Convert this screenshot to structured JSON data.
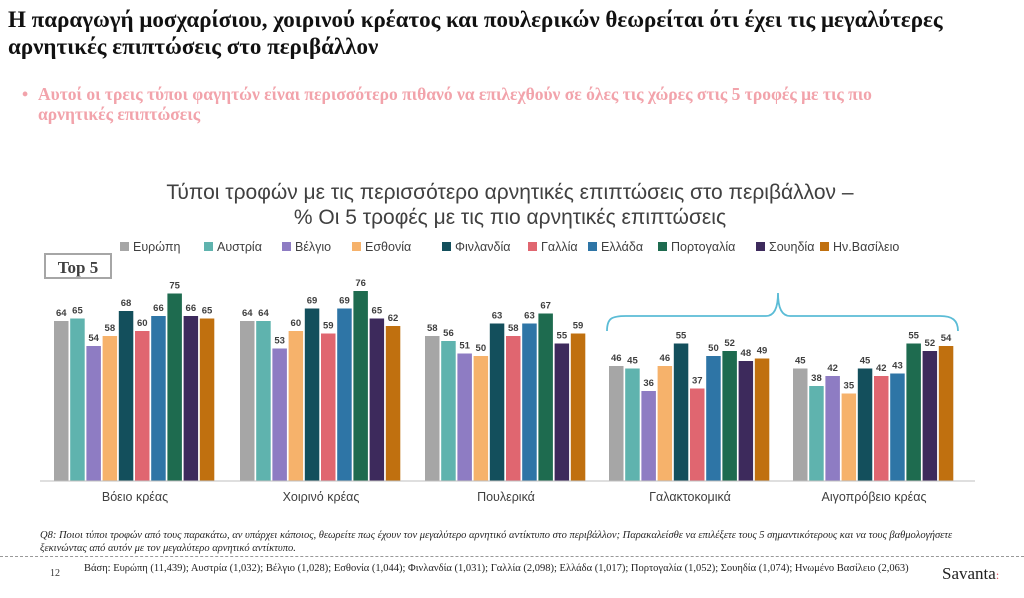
{
  "slide": {
    "headline": "Η παραγωγή μοσχαρίσιου, χοιρινού κρέατος και πουλερικών θεωρείται ότι έχει τις μεγαλύτερες αρνητικές επιπτώσεις στο περιβάλλον",
    "bullet_marker": "•",
    "bullet": "Αυτοί οι τρεις τύποι φαγητών είναι περισσότερο πιθανό να επιλεχθούν σε όλες τις χώρες στις 5 τροφές με τις πιο αρνητικές επιπτώσεις",
    "badge": "Top 5",
    "footnote": "Q8: Ποιοι τύποι τροφών από τους παρακάτω, αν υπάρχει κάποιος, θεωρείτε πως έχουν τον μεγαλύτερο αρνητικό αντίκτυπο στο περιβάλλον; Παρακαλείσθε να επιλέξετε τους 5 σημαντικότερους και να τους βαθμολογήσετε ξεκινώντας από αυτόν με τον μεγαλύτερο αρνητικό αντίκτυπο.",
    "base": "Βάση: Ευρώπη (11,439); Αυστρία (1,032); Βέλγιο (1,028); Εσθονία (1,044); Φινλανδία (1,031); Γαλλία (2,098); Ελλάδα (1,017); Πορτογαλία (1,052); Σουηδία (1,074); Ηνωμένο Βασίλειο (2,063)",
    "page_number": "12",
    "logo": "Savanta",
    "logo_mark": ":"
  },
  "chart_data": {
    "type": "bar",
    "title_line1": "Τύποι τροφών με τις περισσότερο αρνητικές επιπτώσεις στο περιβάλλον –",
    "title_line2": "% Οι 5 τροφές με τις πιο αρνητικές επιπτώσεις",
    "categories": [
      "Βόειο κρέας",
      "Χοιρινό κρέας",
      "Πουλερικά",
      "Γαλακτοκομικά",
      "Αιγοπρόβειο κρέας"
    ],
    "ylim": [
      0,
      80
    ],
    "grid": false,
    "legend_position": "top",
    "bracket_over": [
      "Γαλακτοκομικά",
      "Αιγοπρόβειο κρέας"
    ],
    "series": [
      {
        "name": "Ευρώπη",
        "color": "#a6a6a6",
        "values": [
          64,
          64,
          58,
          46,
          45
        ]
      },
      {
        "name": "Αυστρία",
        "color": "#5fb3ae",
        "values": [
          65,
          64,
          56,
          45,
          38
        ]
      },
      {
        "name": "Βέλγιο",
        "color": "#8e7cc3",
        "values": [
          54,
          53,
          51,
          36,
          42
        ]
      },
      {
        "name": "Εσθονία",
        "color": "#f6b26b",
        "values": [
          58,
          60,
          50,
          46,
          35
        ]
      },
      {
        "name": "Φινλανδία",
        "color": "#134f5c",
        "values": [
          68,
          69,
          63,
          55,
          45
        ]
      },
      {
        "name": "Γαλλία",
        "color": "#e06670",
        "values": [
          60,
          59,
          58,
          37,
          42
        ]
      },
      {
        "name": "Ελλάδα",
        "color": "#2e75a6",
        "values": [
          66,
          69,
          63,
          50,
          43
        ]
      },
      {
        "name": "Πορτογαλία",
        "color": "#1e6b4f",
        "values": [
          75,
          76,
          67,
          52,
          55
        ]
      },
      {
        "name": "Σουηδία",
        "color": "#3d2a5c",
        "values": [
          66,
          65,
          55,
          48,
          52
        ]
      },
      {
        "name": "Ην.Βασίλειο",
        "color": "#c0700f",
        "values": [
          65,
          62,
          59,
          49,
          54
        ]
      }
    ]
  }
}
